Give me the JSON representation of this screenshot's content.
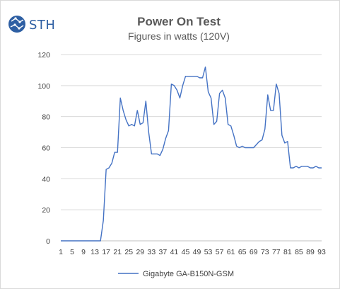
{
  "logo": {
    "text": "STH",
    "color": "#2e5fa3"
  },
  "chart_data": {
    "type": "line",
    "title": "Power On Test",
    "subtitle": "Figures in watts (120V)",
    "xlabel": "",
    "ylabel": "",
    "ylim": [
      0,
      120
    ],
    "yticks": [
      0,
      20,
      40,
      60,
      80,
      100,
      120
    ],
    "xlim": [
      1,
      93
    ],
    "xticks": [
      1,
      5,
      9,
      13,
      17,
      21,
      25,
      29,
      33,
      37,
      41,
      45,
      49,
      53,
      57,
      61,
      65,
      69,
      73,
      77,
      81,
      85,
      89,
      93
    ],
    "grid": "horizontal",
    "legend_position": "bottom",
    "series": [
      {
        "name": "Gigabyte GA-B150N-GSM",
        "color": "#4472c4",
        "values": [
          0,
          0,
          0,
          0,
          0,
          0,
          0,
          0,
          0,
          0,
          0,
          0,
          0,
          0,
          0,
          13,
          46,
          47,
          50,
          57,
          57,
          92,
          84,
          78,
          74,
          75,
          74,
          84,
          75,
          76,
          90,
          70,
          56,
          56,
          56,
          55,
          59,
          66,
          71,
          101,
          100,
          97,
          92,
          100,
          106,
          106,
          106,
          106,
          106,
          105,
          105,
          112,
          96,
          92,
          75,
          77,
          95,
          97,
          92,
          75,
          74,
          68,
          61,
          60,
          61,
          60,
          60,
          60,
          60,
          62,
          64,
          65,
          72,
          94,
          84,
          84,
          101,
          95,
          68,
          63,
          64,
          47,
          47,
          48,
          47,
          48,
          48,
          48,
          47,
          47,
          48,
          47,
          47
        ]
      }
    ]
  }
}
